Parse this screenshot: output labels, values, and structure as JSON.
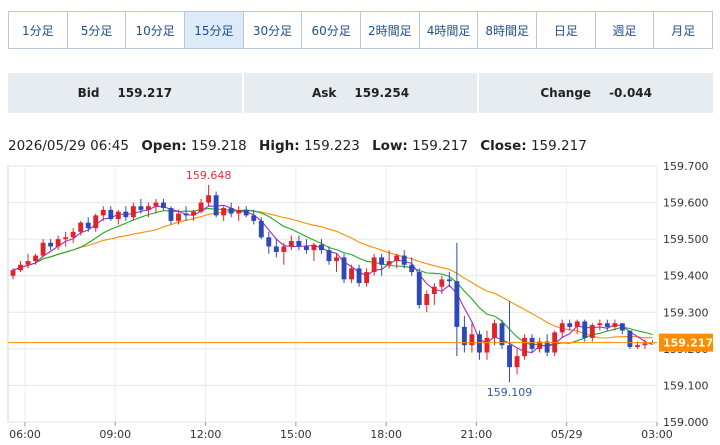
{
  "timeframes": [
    {
      "label": "1分足",
      "active": false
    },
    {
      "label": "5分足",
      "active": false
    },
    {
      "label": "10分足",
      "active": false
    },
    {
      "label": "15分足",
      "active": true
    },
    {
      "label": "30分足",
      "active": false
    },
    {
      "label": "60分足",
      "active": false
    },
    {
      "label": "2時間足",
      "active": false
    },
    {
      "label": "4時間足",
      "active": false
    },
    {
      "label": "8時間足",
      "active": false
    },
    {
      "label": "日足",
      "active": false
    },
    {
      "label": "週足",
      "active": false
    },
    {
      "label": "月足",
      "active": false
    }
  ],
  "quote": {
    "bid_label": "Bid",
    "bid": "159.217",
    "ask_label": "Ask",
    "ask": "159.254",
    "change_label": "Change",
    "change": "-0.044"
  },
  "ohlc": {
    "datetime": "2026/05/29 06:45",
    "open_label": "Open:",
    "open": "159.218",
    "high_label": "High:",
    "high": "159.223",
    "low_label": "Low:",
    "low": "159.217",
    "close_label": "Close:",
    "close": "159.217"
  },
  "chart_data": {
    "type": "candlestick",
    "interval_minutes": 15,
    "x_tick_labels": [
      "06:00",
      "09:00",
      "12:00",
      "15:00",
      "18:00",
      "21:00",
      "05/29",
      "03:00",
      "06:00"
    ],
    "y_tick_labels": [
      "159.700",
      "159.600",
      "159.500",
      "159.400",
      "159.300",
      "159.200",
      "159.100",
      "159.000"
    ],
    "ylim": [
      159.0,
      159.7
    ],
    "current_price": "159.217",
    "high_marker": "159.648",
    "low_marker": "159.109",
    "colors": {
      "up": "#e0232a",
      "down": "#2d49b8",
      "ma_short": "#9932cc",
      "ma_mid": "#22aa22",
      "ma_long": "#ff8c00",
      "price_line": "#ff8c00"
    },
    "candles": [
      [
        159.4,
        159.42,
        159.39,
        159.415
      ],
      [
        159.415,
        159.44,
        159.41,
        159.43
      ],
      [
        159.43,
        159.46,
        159.42,
        159.44
      ],
      [
        159.44,
        159.46,
        159.43,
        159.455
      ],
      [
        159.455,
        159.5,
        159.45,
        159.49
      ],
      [
        159.49,
        159.5,
        159.47,
        159.48
      ],
      [
        159.48,
        159.51,
        159.47,
        159.5
      ],
      [
        159.5,
        159.52,
        159.48,
        159.505
      ],
      [
        159.505,
        159.53,
        159.49,
        159.52
      ],
      [
        159.52,
        159.55,
        159.51,
        159.545
      ],
      [
        159.545,
        159.56,
        159.52,
        159.53
      ],
      [
        159.53,
        159.57,
        159.52,
        159.565
      ],
      [
        159.565,
        159.59,
        159.55,
        159.58
      ],
      [
        159.58,
        159.59,
        159.55,
        159.555
      ],
      [
        159.555,
        159.58,
        159.54,
        159.575
      ],
      [
        159.575,
        159.59,
        159.55,
        159.56
      ],
      [
        159.56,
        159.6,
        159.55,
        159.59
      ],
      [
        159.59,
        159.61,
        159.57,
        159.58
      ],
      [
        159.58,
        159.6,
        159.56,
        159.59
      ],
      [
        159.59,
        159.61,
        159.57,
        159.6
      ],
      [
        159.6,
        159.61,
        159.58,
        159.585
      ],
      [
        159.585,
        159.59,
        159.54,
        159.55
      ],
      [
        159.55,
        159.58,
        159.54,
        159.57
      ],
      [
        159.57,
        159.59,
        159.55,
        159.565
      ],
      [
        159.565,
        159.58,
        159.55,
        159.575
      ],
      [
        159.575,
        159.61,
        159.57,
        159.6
      ],
      [
        159.6,
        159.648,
        159.59,
        159.62
      ],
      [
        159.62,
        159.63,
        159.56,
        159.565
      ],
      [
        159.565,
        159.59,
        159.55,
        159.585
      ],
      [
        159.585,
        159.6,
        159.56,
        159.57
      ],
      [
        159.57,
        159.59,
        159.55,
        159.58
      ],
      [
        159.58,
        159.59,
        159.56,
        159.565
      ],
      [
        159.565,
        159.58,
        159.54,
        159.55
      ],
      [
        159.55,
        159.56,
        159.5,
        159.505
      ],
      [
        159.505,
        159.52,
        159.46,
        159.48
      ],
      [
        159.48,
        159.5,
        159.45,
        159.465
      ],
      [
        159.465,
        159.49,
        159.43,
        159.48
      ],
      [
        159.48,
        159.51,
        159.47,
        159.495
      ],
      [
        159.495,
        159.51,
        159.47,
        159.48
      ],
      [
        159.48,
        159.5,
        159.46,
        159.47
      ],
      [
        159.47,
        159.49,
        159.44,
        159.485
      ],
      [
        159.485,
        159.5,
        159.46,
        159.47
      ],
      [
        159.47,
        159.48,
        159.43,
        159.44
      ],
      [
        159.44,
        159.46,
        159.41,
        159.45
      ],
      [
        159.45,
        159.46,
        159.38,
        159.39
      ],
      [
        159.39,
        159.43,
        159.38,
        159.42
      ],
      [
        159.42,
        159.43,
        159.37,
        159.38
      ],
      [
        159.38,
        159.42,
        159.37,
        159.41
      ],
      [
        159.41,
        159.46,
        159.4,
        159.45
      ],
      [
        159.45,
        159.46,
        159.4,
        159.43
      ],
      [
        159.43,
        159.47,
        159.42,
        159.44
      ],
      [
        159.44,
        159.46,
        159.42,
        159.455
      ],
      [
        159.455,
        159.47,
        159.42,
        159.43
      ],
      [
        159.43,
        159.45,
        159.4,
        159.41
      ],
      [
        159.41,
        159.42,
        159.31,
        159.32
      ],
      [
        159.32,
        159.36,
        159.3,
        159.35
      ],
      [
        159.35,
        159.38,
        159.32,
        159.37
      ],
      [
        159.37,
        159.4,
        159.35,
        159.39
      ],
      [
        159.39,
        159.41,
        159.37,
        159.385
      ],
      [
        159.385,
        159.49,
        159.18,
        159.26
      ],
      [
        159.26,
        159.29,
        159.19,
        159.21
      ],
      [
        159.21,
        159.27,
        159.19,
        159.24
      ],
      [
        159.24,
        159.25,
        159.17,
        159.19
      ],
      [
        159.19,
        159.25,
        159.17,
        159.23
      ],
      [
        159.23,
        159.28,
        159.21,
        159.27
      ],
      [
        159.27,
        159.28,
        159.2,
        159.21
      ],
      [
        159.21,
        159.33,
        159.109,
        159.15
      ],
      [
        159.15,
        159.2,
        159.13,
        159.18
      ],
      [
        159.18,
        159.24,
        159.17,
        159.23
      ],
      [
        159.23,
        159.24,
        159.19,
        159.2
      ],
      [
        159.2,
        159.23,
        159.19,
        159.22
      ],
      [
        159.22,
        159.24,
        159.18,
        159.19
      ],
      [
        159.19,
        159.25,
        159.18,
        159.245
      ],
      [
        159.245,
        159.28,
        159.23,
        159.27
      ],
      [
        159.27,
        159.28,
        159.25,
        159.26
      ],
      [
        159.26,
        159.28,
        159.24,
        159.275
      ],
      [
        159.275,
        159.28,
        159.22,
        159.23
      ],
      [
        159.23,
        159.27,
        159.22,
        159.265
      ],
      [
        159.265,
        159.28,
        159.25,
        159.27
      ],
      [
        159.27,
        159.28,
        159.25,
        159.26
      ],
      [
        159.26,
        159.28,
        159.25,
        159.27
      ],
      [
        159.27,
        159.27,
        159.24,
        159.25
      ],
      [
        159.25,
        159.25,
        159.2,
        159.205
      ],
      [
        159.205,
        159.22,
        159.2,
        159.21
      ],
      [
        159.21,
        159.225,
        159.2,
        159.215
      ],
      [
        159.218,
        159.223,
        159.217,
        159.217
      ]
    ]
  }
}
